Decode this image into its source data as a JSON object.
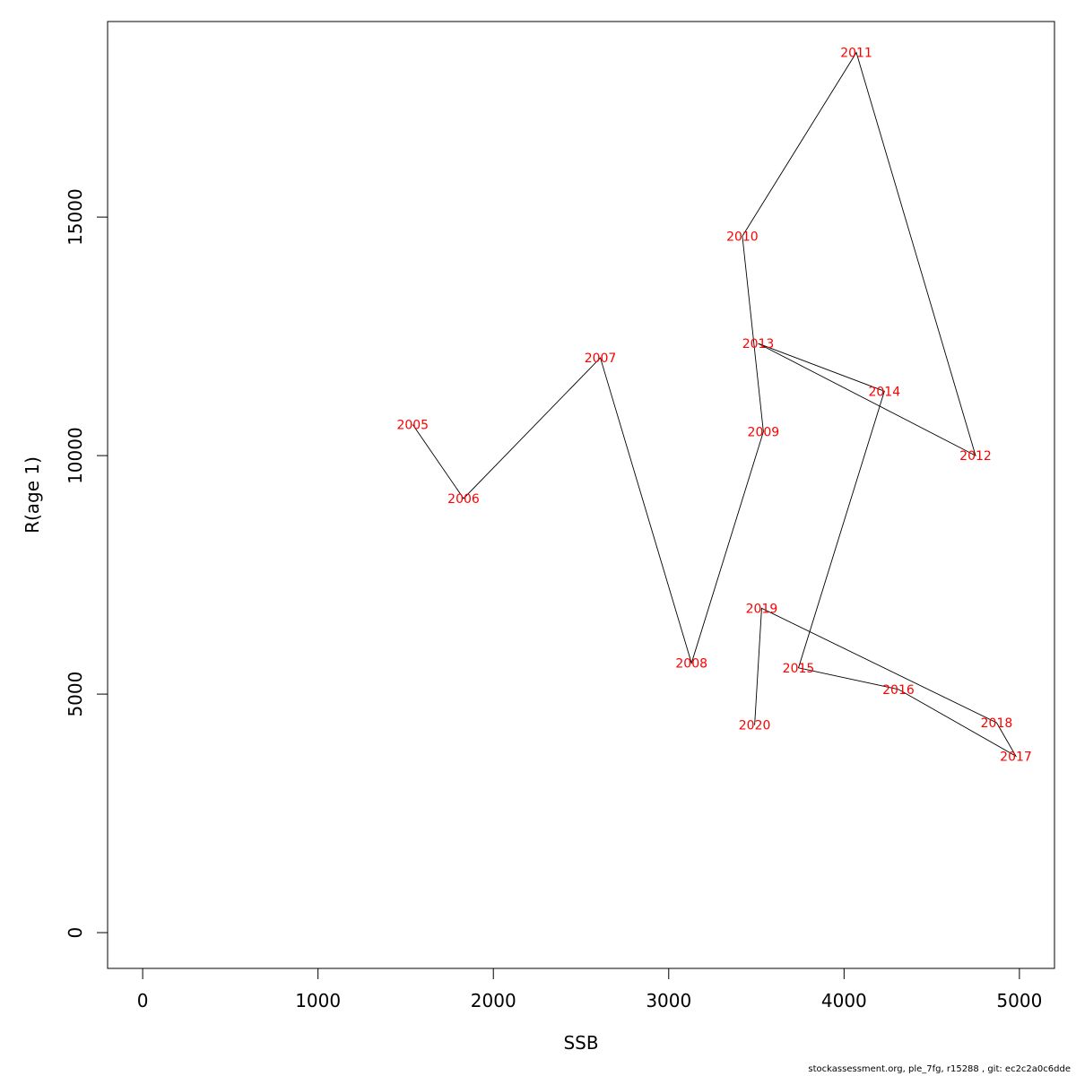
{
  "chart_data": {
    "type": "line",
    "xlabel": "SSB",
    "ylabel": "R(age 1)",
    "xlim": [
      -200,
      5200
    ],
    "ylim": [
      -750,
      19100
    ],
    "xticks": [
      0,
      1000,
      2000,
      3000,
      4000,
      5000
    ],
    "yticks": [
      0,
      5000,
      10000,
      15000
    ],
    "grid": false,
    "line_color": "#000000",
    "label_color": "#ff0000",
    "points": [
      {
        "label": "2005",
        "x": 1540,
        "y": 10650
      },
      {
        "label": "2006",
        "x": 1830,
        "y": 9100
      },
      {
        "label": "2007",
        "x": 2610,
        "y": 12050
      },
      {
        "label": "2008",
        "x": 3130,
        "y": 5650
      },
      {
        "label": "2009",
        "x": 3540,
        "y": 10500
      },
      {
        "label": "2010",
        "x": 3420,
        "y": 14600
      },
      {
        "label": "2011",
        "x": 4070,
        "y": 18450
      },
      {
        "label": "2012",
        "x": 4750,
        "y": 10000
      },
      {
        "label": "2013",
        "x": 3510,
        "y": 12350
      },
      {
        "label": "2014",
        "x": 4230,
        "y": 11350
      },
      {
        "label": "2015",
        "x": 3740,
        "y": 5550
      },
      {
        "label": "2016",
        "x": 4310,
        "y": 5100
      },
      {
        "label": "2017",
        "x": 4980,
        "y": 3700
      },
      {
        "label": "2018",
        "x": 4870,
        "y": 4400
      },
      {
        "label": "2019",
        "x": 3530,
        "y": 6800
      },
      {
        "label": "2020",
        "x": 3490,
        "y": 4350
      }
    ]
  },
  "footer": "stockassessment.org, ple_7fg, r15288 , git: ec2c2a0c6dde"
}
